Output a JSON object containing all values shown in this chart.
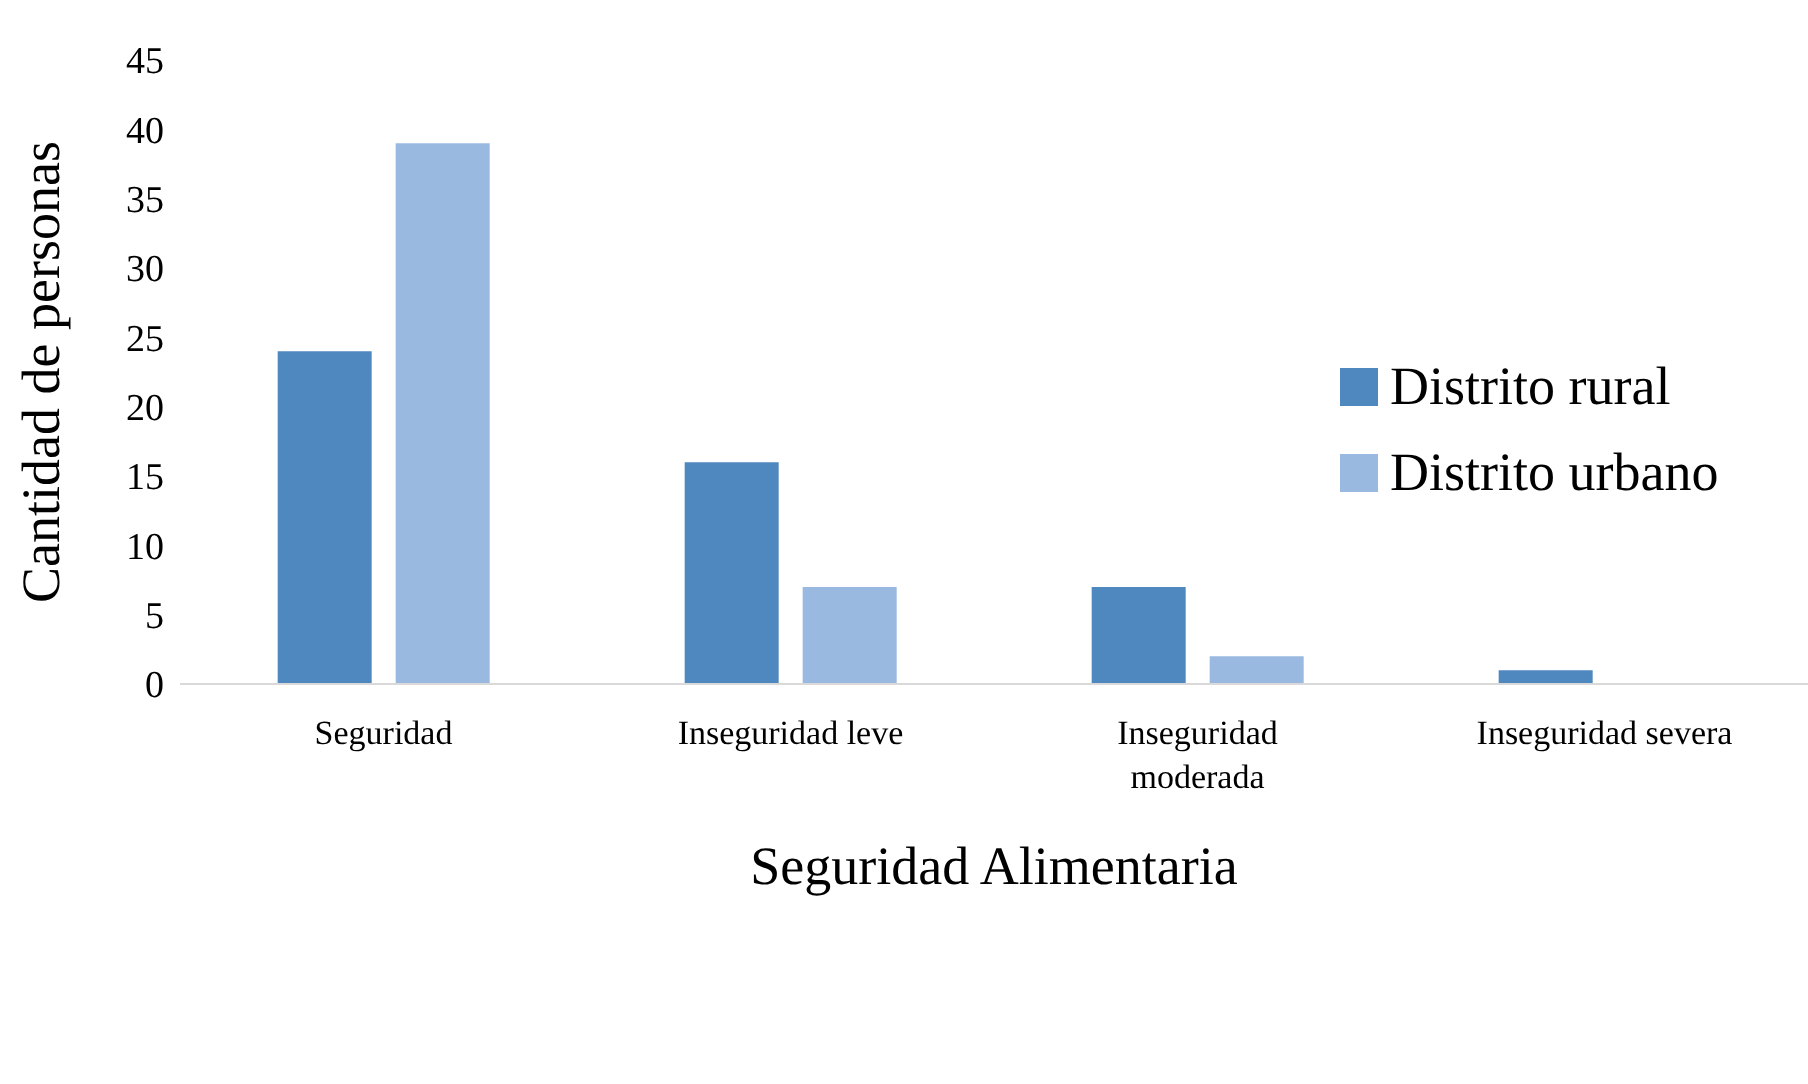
{
  "chart_data": {
    "type": "bar",
    "xlabel": "Seguridad Alimentaria",
    "ylabel": "Cantidad de personas",
    "categories": [
      "Seguridad",
      "Inseguridad leve",
      "Inseguridad moderada",
      "Inseguridad severa"
    ],
    "series": [
      {
        "name": "Distrito rural",
        "color": "#4f87bf",
        "values": [
          24,
          16,
          7,
          1
        ]
      },
      {
        "name": "Distrito urbano",
        "color": "#9ab9e0",
        "values": [
          39,
          7,
          2,
          0
        ]
      }
    ],
    "ylim": [
      0,
      45
    ],
    "yticks": [
      0,
      5,
      10,
      15,
      20,
      25,
      30,
      35,
      40,
      45
    ],
    "grid": false,
    "legend": "right"
  }
}
